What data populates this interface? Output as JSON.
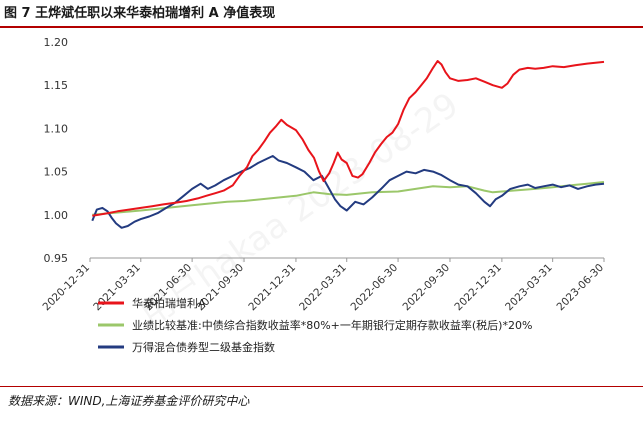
{
  "figure": {
    "title": "图 7 王烨斌任职以来华泰柏瑞增利 A 净值表现",
    "source": "数据来源：WIND,上海证券基金评价研究中心",
    "watermark": "用户hakaa 2023-08-29"
  },
  "chart_data": {
    "type": "line",
    "title": "",
    "xlabel": "",
    "ylabel": "",
    "x_ticks": [
      "2020-12-31",
      "2021-03-31",
      "2021-06-30",
      "2021-09-30",
      "2021-12-31",
      "2022-03-31",
      "2022-06-30",
      "2022-09-30",
      "2022-12-31",
      "2023-03-31",
      "2023-06-30"
    ],
    "y_ticks": [
      "1.20",
      "1.15",
      "1.10",
      "1.05",
      "1.00",
      "0.95"
    ],
    "ylim": [
      0.95,
      1.2
    ],
    "xlim": [
      "2020-12-31",
      "2023-06-30"
    ],
    "grid": false,
    "legend_position": "bottom",
    "series": [
      {
        "name": "华泰柏瑞增利A",
        "color": "#e8141b",
        "points": [
          [
            "2021-01-04",
            0.999
          ],
          [
            "2021-01-15",
            1.0
          ],
          [
            "2021-02-01",
            1.002
          ],
          [
            "2021-02-18",
            1.004
          ],
          [
            "2021-03-10",
            1.006
          ],
          [
            "2021-03-31",
            1.008
          ],
          [
            "2021-04-20",
            1.01
          ],
          [
            "2021-05-10",
            1.012
          ],
          [
            "2021-05-31",
            1.014
          ],
          [
            "2021-06-20",
            1.016
          ],
          [
            "2021-07-10",
            1.019
          ],
          [
            "2021-07-25",
            1.022
          ],
          [
            "2021-08-10",
            1.025
          ],
          [
            "2021-08-25",
            1.028
          ],
          [
            "2021-09-10",
            1.034
          ],
          [
            "2021-09-22",
            1.045
          ],
          [
            "2021-10-05",
            1.055
          ],
          [
            "2021-10-15",
            1.068
          ],
          [
            "2021-10-25",
            1.075
          ],
          [
            "2021-11-05",
            1.085
          ],
          [
            "2021-11-15",
            1.095
          ],
          [
            "2021-11-25",
            1.102
          ],
          [
            "2021-12-05",
            1.11
          ],
          [
            "2021-12-15",
            1.104
          ],
          [
            "2021-12-31",
            1.098
          ],
          [
            "2022-01-12",
            1.087
          ],
          [
            "2022-01-22",
            1.075
          ],
          [
            "2022-02-01",
            1.066
          ],
          [
            "2022-02-10",
            1.05
          ],
          [
            "2022-02-18",
            1.039
          ],
          [
            "2022-02-28",
            1.048
          ],
          [
            "2022-03-08",
            1.06
          ],
          [
            "2022-03-15",
            1.072
          ],
          [
            "2022-03-22",
            1.064
          ],
          [
            "2022-03-31",
            1.06
          ],
          [
            "2022-04-10",
            1.045
          ],
          [
            "2022-04-20",
            1.043
          ],
          [
            "2022-04-28",
            1.047
          ],
          [
            "2022-05-10",
            1.06
          ],
          [
            "2022-05-20",
            1.072
          ],
          [
            "2022-05-31",
            1.082
          ],
          [
            "2022-06-10",
            1.09
          ],
          [
            "2022-06-20",
            1.095
          ],
          [
            "2022-06-30",
            1.105
          ],
          [
            "2022-07-10",
            1.122
          ],
          [
            "2022-07-20",
            1.135
          ],
          [
            "2022-07-31",
            1.142
          ],
          [
            "2022-08-10",
            1.15
          ],
          [
            "2022-08-20",
            1.158
          ],
          [
            "2022-08-31",
            1.17
          ],
          [
            "2022-09-08",
            1.178
          ],
          [
            "2022-09-15",
            1.174
          ],
          [
            "2022-09-22",
            1.165
          ],
          [
            "2022-09-30",
            1.158
          ],
          [
            "2022-10-15",
            1.155
          ],
          [
            "2022-10-31",
            1.156
          ],
          [
            "2022-11-15",
            1.158
          ],
          [
            "2022-11-30",
            1.154
          ],
          [
            "2022-12-15",
            1.15
          ],
          [
            "2022-12-31",
            1.147
          ],
          [
            "2023-01-10",
            1.152
          ],
          [
            "2023-01-20",
            1.162
          ],
          [
            "2023-01-31",
            1.168
          ],
          [
            "2023-02-15",
            1.17
          ],
          [
            "2023-02-28",
            1.169
          ],
          [
            "2023-03-15",
            1.17
          ],
          [
            "2023-03-31",
            1.172
          ],
          [
            "2023-04-20",
            1.171
          ],
          [
            "2023-05-10",
            1.173
          ],
          [
            "2023-05-31",
            1.175
          ],
          [
            "2023-06-15",
            1.176
          ],
          [
            "2023-06-30",
            1.177
          ]
        ]
      },
      {
        "name": "业绩比较基准:中债综合指数收益率*80%+一年期银行定期存款收益率(税后)*20%",
        "color": "#9bc76a",
        "points": [
          [
            "2021-01-04",
            1.0
          ],
          [
            "2021-03-31",
            1.005
          ],
          [
            "2021-06-30",
            1.011
          ],
          [
            "2021-08-31",
            1.015
          ],
          [
            "2021-09-30",
            1.016
          ],
          [
            "2021-11-15",
            1.019
          ],
          [
            "2021-12-31",
            1.022
          ],
          [
            "2022-01-31",
            1.026
          ],
          [
            "2022-02-28",
            1.024
          ],
          [
            "2022-03-31",
            1.023
          ],
          [
            "2022-05-15",
            1.026
          ],
          [
            "2022-06-30",
            1.027
          ],
          [
            "2022-07-31",
            1.03
          ],
          [
            "2022-08-31",
            1.033
          ],
          [
            "2022-09-30",
            1.032
          ],
          [
            "2022-10-31",
            1.033
          ],
          [
            "2022-11-30",
            1.028
          ],
          [
            "2022-12-15",
            1.026
          ],
          [
            "2022-12-31",
            1.027
          ],
          [
            "2023-02-28",
            1.03
          ],
          [
            "2023-03-31",
            1.032
          ],
          [
            "2023-04-30",
            1.034
          ],
          [
            "2023-05-31",
            1.036
          ],
          [
            "2023-06-30",
            1.038
          ]
        ]
      },
      {
        "name": "万得混合债券型二级基金指数",
        "color": "#233b80",
        "points": [
          [
            "2021-01-04",
            0.993
          ],
          [
            "2021-01-12",
            1.006
          ],
          [
            "2021-01-22",
            1.008
          ],
          [
            "2021-01-31",
            1.004
          ],
          [
            "2021-02-08",
            0.996
          ],
          [
            "2021-02-15",
            0.99
          ],
          [
            "2021-02-25",
            0.985
          ],
          [
            "2021-03-08",
            0.987
          ],
          [
            "2021-03-20",
            0.992
          ],
          [
            "2021-03-31",
            0.995
          ],
          [
            "2021-04-15",
            0.998
          ],
          [
            "2021-04-30",
            1.002
          ],
          [
            "2021-05-15",
            1.008
          ],
          [
            "2021-05-31",
            1.014
          ],
          [
            "2021-06-15",
            1.022
          ],
          [
            "2021-06-30",
            1.03
          ],
          [
            "2021-07-15",
            1.036
          ],
          [
            "2021-07-28",
            1.03
          ],
          [
            "2021-08-10",
            1.034
          ],
          [
            "2021-08-25",
            1.04
          ],
          [
            "2021-09-10",
            1.045
          ],
          [
            "2021-09-25",
            1.05
          ],
          [
            "2021-10-10",
            1.054
          ],
          [
            "2021-10-25",
            1.06
          ],
          [
            "2021-11-10",
            1.065
          ],
          [
            "2021-11-20",
            1.068
          ],
          [
            "2021-11-30",
            1.063
          ],
          [
            "2021-12-15",
            1.06
          ],
          [
            "2021-12-31",
            1.055
          ],
          [
            "2022-01-15",
            1.05
          ],
          [
            "2022-01-31",
            1.04
          ],
          [
            "2022-02-15",
            1.045
          ],
          [
            "2022-02-28",
            1.03
          ],
          [
            "2022-03-10",
            1.018
          ],
          [
            "2022-03-20",
            1.01
          ],
          [
            "2022-03-31",
            1.005
          ],
          [
            "2022-04-15",
            1.015
          ],
          [
            "2022-04-30",
            1.012
          ],
          [
            "2022-05-15",
            1.02
          ],
          [
            "2022-05-31",
            1.03
          ],
          [
            "2022-06-15",
            1.04
          ],
          [
            "2022-06-30",
            1.045
          ],
          [
            "2022-07-15",
            1.05
          ],
          [
            "2022-07-31",
            1.048
          ],
          [
            "2022-08-15",
            1.052
          ],
          [
            "2022-08-31",
            1.05
          ],
          [
            "2022-09-15",
            1.046
          ],
          [
            "2022-09-30",
            1.04
          ],
          [
            "2022-10-15",
            1.035
          ],
          [
            "2022-10-31",
            1.033
          ],
          [
            "2022-11-15",
            1.025
          ],
          [
            "2022-11-30",
            1.015
          ],
          [
            "2022-12-10",
            1.01
          ],
          [
            "2022-12-20",
            1.018
          ],
          [
            "2022-12-31",
            1.022
          ],
          [
            "2023-01-15",
            1.03
          ],
          [
            "2023-01-31",
            1.033
          ],
          [
            "2023-02-15",
            1.035
          ],
          [
            "2023-02-28",
            1.031
          ],
          [
            "2023-03-15",
            1.033
          ],
          [
            "2023-03-31",
            1.035
          ],
          [
            "2023-04-15",
            1.032
          ],
          [
            "2023-04-30",
            1.034
          ],
          [
            "2023-05-15",
            1.03
          ],
          [
            "2023-05-31",
            1.033
          ],
          [
            "2023-06-15",
            1.035
          ],
          [
            "2023-06-30",
            1.036
          ]
        ]
      }
    ]
  }
}
